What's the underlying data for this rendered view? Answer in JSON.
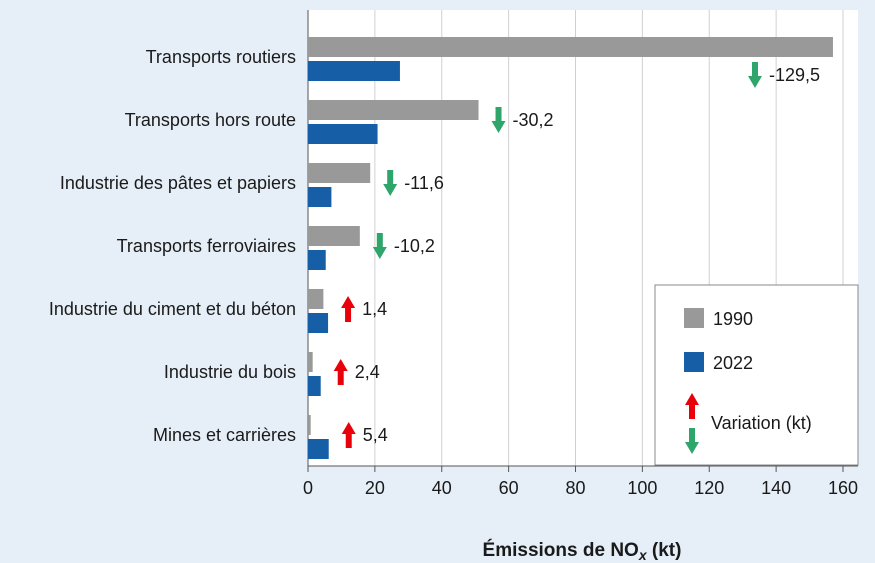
{
  "chart_data": {
    "type": "bar",
    "orientation": "horizontal",
    "categories": [
      "Transports routiers",
      "Transports hors route",
      "Industrie des pâtes et papiers",
      "Transports ferroviaires",
      "Industrie du ciment et du béton",
      "Industrie du bois",
      "Mines et carrières"
    ],
    "series": [
      {
        "name": "1990",
        "color": "#999999",
        "values": [
          157,
          51,
          18.6,
          15.5,
          4.6,
          1.4,
          0.8
        ]
      },
      {
        "name": "2022",
        "color": "#165fa7",
        "values": [
          27.5,
          20.8,
          7.0,
          5.3,
          6.0,
          3.8,
          6.2
        ]
      }
    ],
    "variation": {
      "name": "Variation (kt)",
      "values": [
        -129.5,
        -30.2,
        -11.6,
        -10.2,
        1.4,
        2.4,
        5.4
      ],
      "value_labels": [
        "-129,5",
        "-30,2",
        "-11,6",
        "-10,2",
        "1,4",
        "2,4",
        "5,4"
      ],
      "colors": {
        "down": "#2ea56a",
        "up": "#e8000b"
      }
    },
    "x_label_parts": [
      "Émissions de NO",
      "x",
      " (kt)"
    ],
    "xlim": [
      0,
      160
    ],
    "xticks": [
      0,
      20,
      40,
      60,
      80,
      100,
      120,
      140,
      160
    ],
    "grid": true
  }
}
